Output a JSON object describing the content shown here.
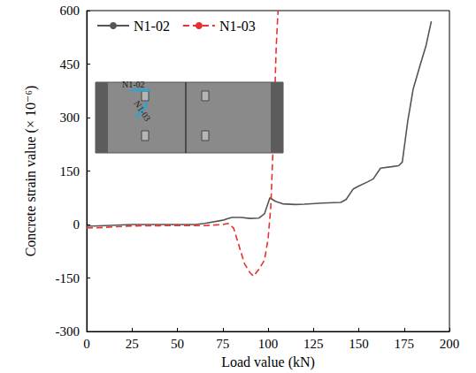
{
  "chart_data": {
    "type": "line",
    "xlabel": "Load value (kN)",
    "ylabel": "Concrete strain value (× 10⁻⁶)",
    "xlim": [
      0,
      200
    ],
    "xticks": [
      0,
      25,
      50,
      75,
      100,
      125,
      150,
      175,
      200
    ],
    "ylim": [
      -300,
      600
    ],
    "yticks": [
      -300,
      -150,
      0,
      150,
      300,
      450,
      600
    ],
    "grid": false,
    "legend": "upper left",
    "series": [
      {
        "name": "N1-02",
        "color": "#555555",
        "line_style": "solid",
        "x": [
          0,
          10,
          25,
          40,
          60,
          65,
          75,
          80,
          85,
          90,
          95,
          98,
          101,
          104,
          108,
          115,
          120,
          130,
          140,
          143,
          147,
          150,
          155,
          158,
          162,
          168,
          172,
          174,
          177,
          180,
          184,
          187,
          190
        ],
        "values": [
          -5,
          -3,
          0,
          0,
          0,
          3,
          12,
          20,
          20,
          17,
          18,
          30,
          75,
          65,
          58,
          56,
          57,
          60,
          62,
          70,
          100,
          108,
          120,
          128,
          158,
          162,
          165,
          175,
          290,
          380,
          450,
          500,
          570
        ]
      },
      {
        "name": "N1-03",
        "color": "#e8302c",
        "line_style": "dashed",
        "x": [
          0,
          10,
          25,
          50,
          65,
          75,
          78,
          81,
          84,
          87,
          90,
          92,
          95,
          98,
          100,
          101.5,
          103,
          104.5,
          105.5
        ],
        "values": [
          -10,
          -8,
          -4,
          -3,
          -3,
          0,
          3,
          -10,
          -60,
          -110,
          -135,
          -145,
          -125,
          -100,
          -40,
          50,
          250,
          500,
          600
        ]
      }
    ]
  }
}
